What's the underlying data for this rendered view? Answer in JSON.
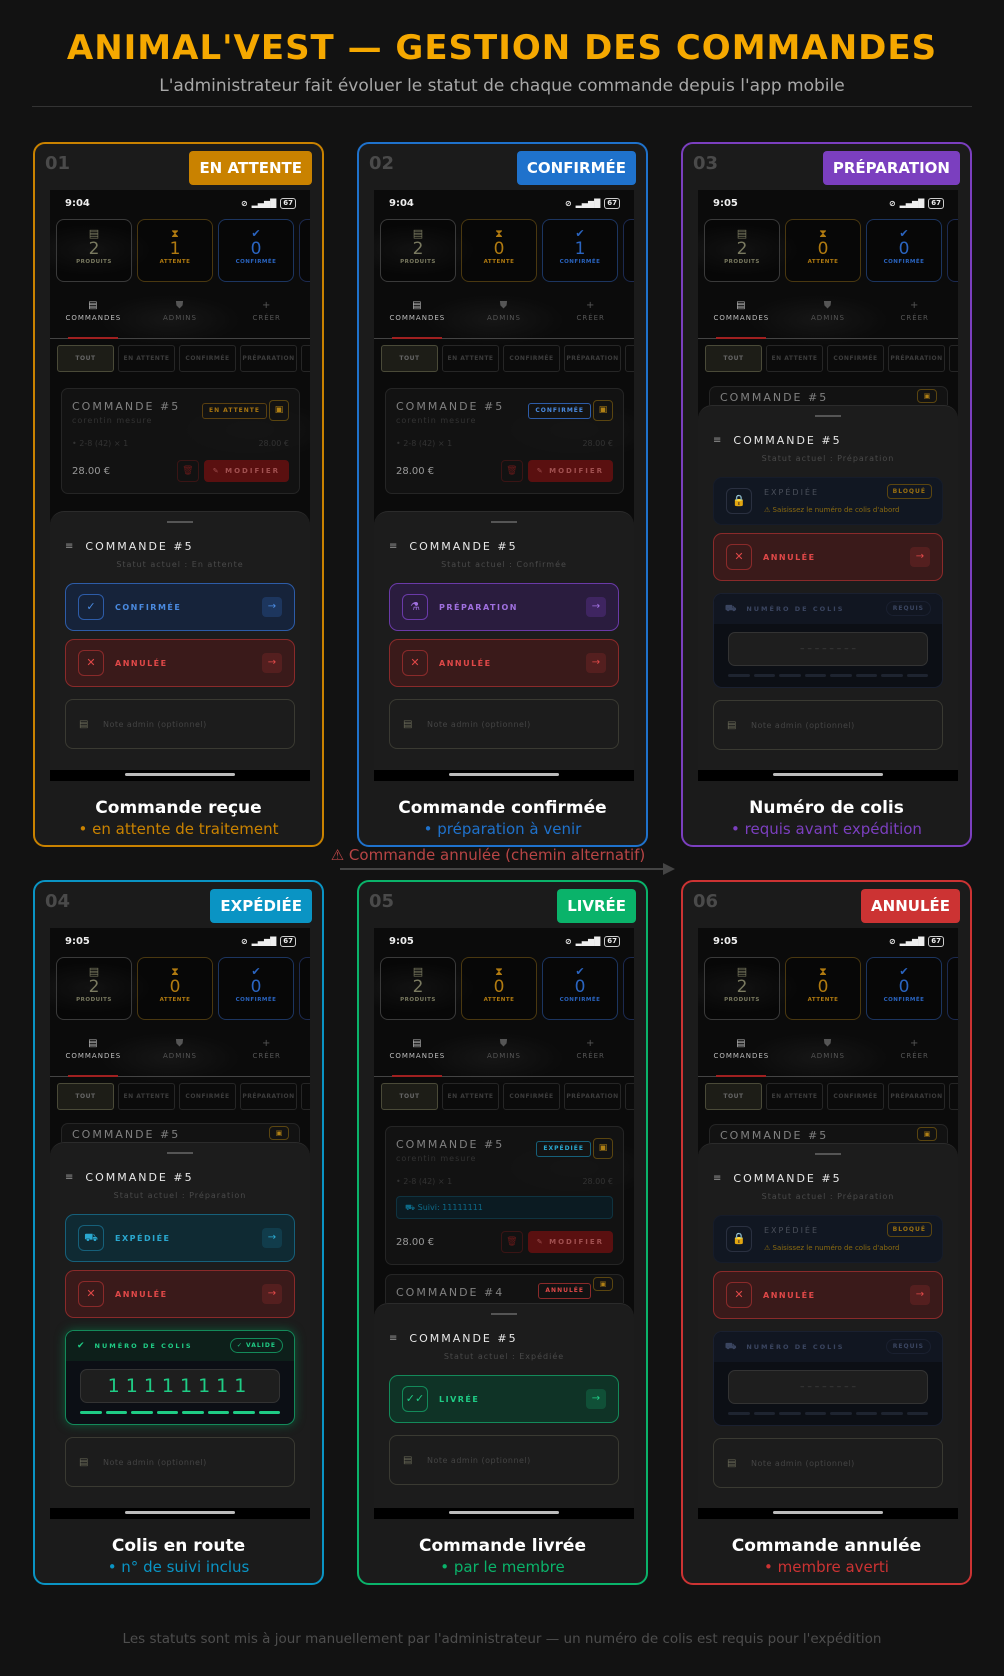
{
  "header": {
    "title": "ANIMAL'VEST — GESTION DES COMMANDES",
    "subtitle": "L'administrateur fait évoluer le statut de chaque commande depuis l'app mobile"
  },
  "alt_path": {
    "icon": "warning-icon",
    "text": "⚠  Commande annulée (chemin alternatif)"
  },
  "footer": "Les statuts sont mis à jour manuellement par l'administrateur — un numéro de colis est requis pour l'expédition",
  "app": {
    "battery": "67",
    "stat_labels": [
      "PRODUITS",
      "ATTENTE",
      "CONFIRMÉE"
    ],
    "nav": [
      "COMMANDES",
      "ADMINS",
      "CRÉER"
    ],
    "filters": [
      "TOUT",
      "EN ATTENTE",
      "CONFIRMÉE",
      "PRÉPARATION"
    ],
    "note_placeholder": "Note admin (optionnel)",
    "colis_label": "NUMÉRO DE COLIS",
    "customer": "corentin mesure",
    "item": "• 2-8 (42) × 1",
    "item_price": "28.00 €",
    "total": "28.00 €",
    "modify": "MODIFIER",
    "colors": {
      "amber": "#c98200",
      "blue": "#1f72cc",
      "purple": "#7b3fbf",
      "teal": "#0a94c4",
      "green": "#0ab36a",
      "red": "#cc3333"
    }
  },
  "panels": [
    {
      "num": "01",
      "badge": "EN ATTENTE",
      "accent": "#c98200",
      "badge_bg": "#c98200",
      "caption": "Commande reçue",
      "caption_sub": "• en attente de traitement",
      "time": "9:04",
      "stats": [
        "2",
        "1",
        "0"
      ],
      "orders": [
        {
          "title": "COMMANDE #5",
          "badge": "EN ATTENTE",
          "kind": "amber"
        }
      ],
      "sheet": {
        "title": "COMMANDE #5",
        "status": "Statut actuel : En attente",
        "options": [
          {
            "label": "CONFIRMÉE",
            "kind": "blue"
          },
          {
            "label": "ANNULÉE",
            "kind": "red"
          }
        ]
      }
    },
    {
      "num": "02",
      "badge": "CONFIRMÉE",
      "accent": "#1f72cc",
      "badge_bg": "#1f72cc",
      "caption": "Commande confirmée",
      "caption_sub": "• préparation à venir",
      "time": "9:04",
      "stats": [
        "2",
        "0",
        "1"
      ],
      "orders": [
        {
          "title": "COMMANDE #5",
          "badge": "CONFIRMÉE",
          "kind": "blue"
        }
      ],
      "sheet": {
        "title": "COMMANDE #5",
        "status": "Statut actuel : Confirmée",
        "options": [
          {
            "label": "PRÉPARATION",
            "kind": "purple"
          },
          {
            "label": "ANNULÉE",
            "kind": "red"
          }
        ]
      }
    },
    {
      "num": "03",
      "badge": "PRÉPARATION",
      "accent": "#7b3fbf",
      "badge_bg": "#7b3fbf",
      "caption": "Numéro de colis",
      "caption_sub": "• requis avant expédition",
      "time": "9:05",
      "stats": [
        "2",
        "0",
        "0"
      ],
      "orders": [
        {
          "title": "COMMANDE #5",
          "badge": "",
          "kind": "purple"
        }
      ],
      "sheet": {
        "title": "COMMANDE #5",
        "status": "Statut actuel : Préparation",
        "options": [
          {
            "label": "EXPÉDIÉE",
            "kind": "locked",
            "warning": "⚠ Saisissez le numéro de colis d'abord",
            "lock_badge": "BLOQUÉ"
          },
          {
            "label": "ANNULÉE",
            "kind": "red"
          }
        ],
        "colis": {
          "state": "required",
          "pill": "REQUIS",
          "value": "– – – – – – – –",
          "progress": 0
        }
      }
    },
    {
      "num": "04",
      "badge": "EXPÉDIÉE",
      "accent": "#0a94c4",
      "badge_bg": "#0a94c4",
      "caption": "Colis en route",
      "caption_sub": "• n° de suivi inclus",
      "time": "9:05",
      "stats": [
        "2",
        "0",
        "0"
      ],
      "orders": [
        {
          "title": "COMMANDE #5",
          "badge": "",
          "kind": "purple"
        }
      ],
      "sheet": {
        "title": "COMMANDE #5",
        "status": "Statut actuel : Préparation",
        "options": [
          {
            "label": "EXPÉDIÉE",
            "kind": "teal"
          },
          {
            "label": "ANNULÉE",
            "kind": "red"
          }
        ],
        "colis": {
          "state": "valid",
          "pill": "✓ VALIDE",
          "value": "11111111",
          "progress": 1
        }
      }
    },
    {
      "num": "05",
      "badge": "LIVRÉE",
      "accent": "#0ab36a",
      "badge_bg": "#0ab36a",
      "caption": "Commande livrée",
      "caption_sub": "• par le membre",
      "time": "9:05",
      "stats": [
        "2",
        "0",
        "0"
      ],
      "orders": [
        {
          "title": "COMMANDE #5",
          "badge": "EXPÉDIÉE",
          "kind": "teal",
          "tracking": "Suivi: 11111111"
        },
        {
          "title": "COMMANDE #4",
          "badge": "ANNULÉE",
          "kind": "red"
        }
      ],
      "sheet": {
        "title": "COMMANDE #5",
        "status": "Statut actuel : Expédiée",
        "options": [
          {
            "label": "LIVRÉE",
            "kind": "green"
          }
        ]
      }
    },
    {
      "num": "06",
      "badge": "ANNULÉE",
      "accent": "#cc3333",
      "badge_bg": "#cc3333",
      "caption": "Commande annulée",
      "caption_sub": "• membre averti",
      "time": "9:05",
      "stats": [
        "2",
        "0",
        "0"
      ],
      "orders": [
        {
          "title": "COMMANDE #5",
          "badge": "",
          "kind": "purple"
        }
      ],
      "sheet": {
        "title": "COMMANDE #5",
        "status": "Statut actuel : Préparation",
        "options": [
          {
            "label": "EXPÉDIÉE",
            "kind": "locked",
            "warning": "⚠ Saisissez le numéro de colis d'abord",
            "lock_badge": "BLOQUÉ"
          },
          {
            "label": "ANNULÉE",
            "kind": "red"
          }
        ],
        "colis": {
          "state": "required",
          "pill": "REQUIS",
          "value": "– – – – – – – –",
          "progress": 0
        }
      }
    }
  ]
}
